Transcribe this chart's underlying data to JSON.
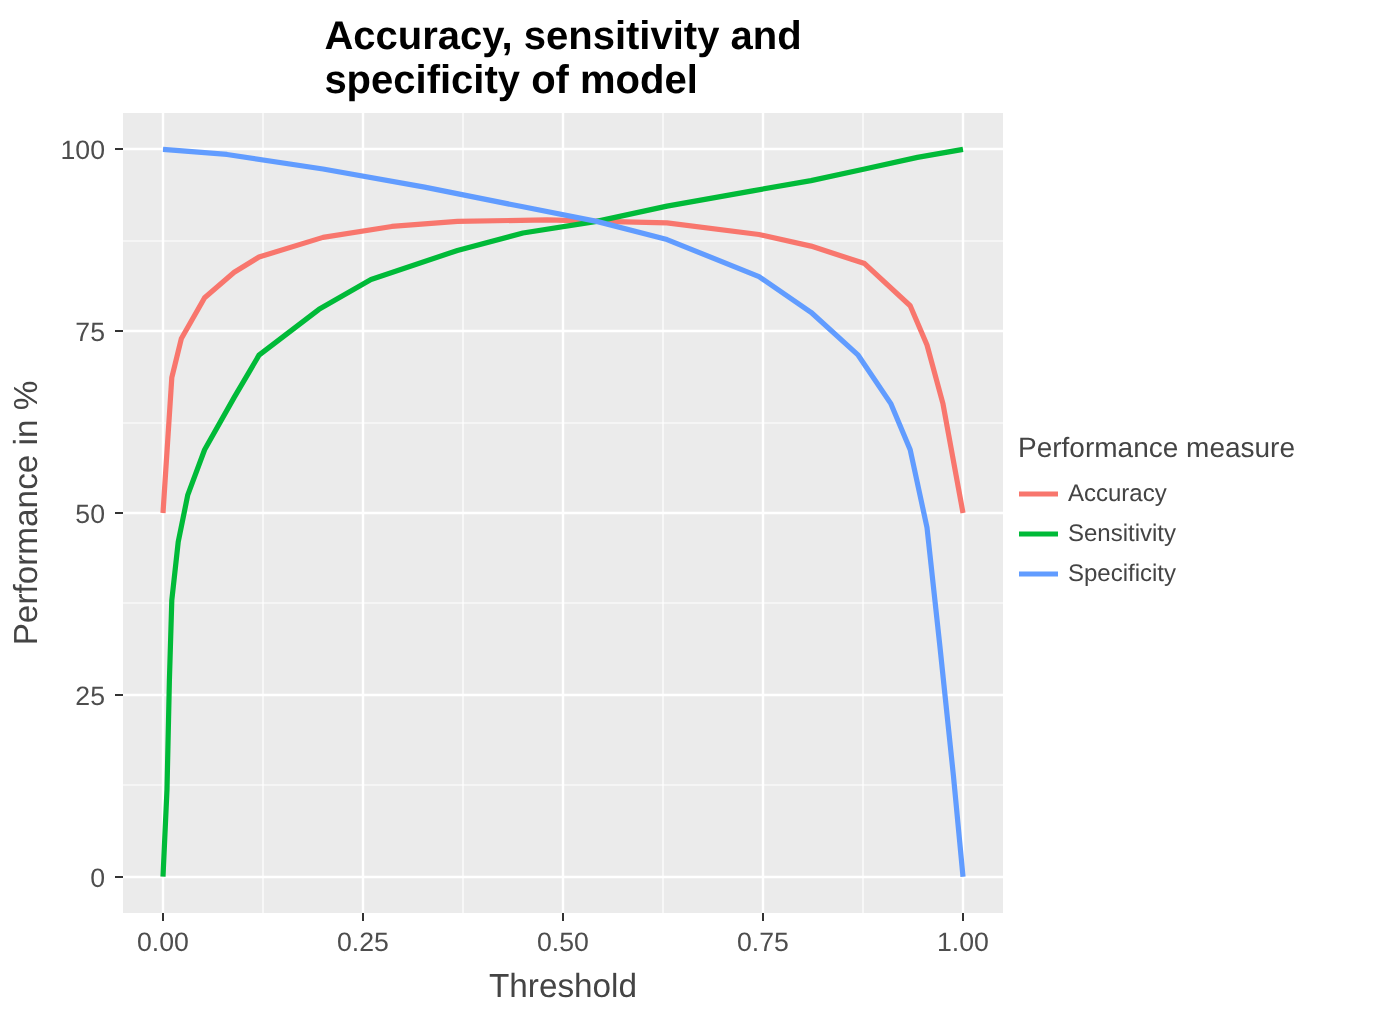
{
  "chart_data": {
    "type": "line",
    "title": "Accuracy, sensitivity and\nspecificity of model",
    "xlabel": "Threshold",
    "ylabel": "Performance in %",
    "legend_title": "Performance measure",
    "xlim": [
      -0.05,
      1.05
    ],
    "ylim": [
      -5,
      105
    ],
    "xticks": [
      {
        "value": 0,
        "label": "0.00"
      },
      {
        "value": 0.25,
        "label": "0.25"
      },
      {
        "value": 0.5,
        "label": "0.50"
      },
      {
        "value": 0.75,
        "label": "0.75"
      },
      {
        "value": 1,
        "label": "1.00"
      }
    ],
    "yticks": [
      0,
      25,
      50,
      75,
      100
    ],
    "grid": true,
    "legend": "right",
    "line_style": "solid",
    "marker": "none",
    "series": [
      {
        "name": "Accuracy",
        "color": "#f8766d",
        "x": [
          0,
          0.011,
          0.023,
          0.052,
          0.089,
          0.12,
          0.2,
          0.286,
          0.368,
          0.48,
          0.55,
          0.63,
          0.745,
          0.81,
          0.877,
          0.934,
          0.955,
          0.975,
          1
        ],
        "values": [
          50,
          68.6,
          74,
          79.6,
          83.1,
          85.2,
          87.9,
          89.4,
          90.1,
          90.3,
          90.1,
          89.9,
          88.3,
          86.7,
          84.3,
          78.5,
          73.1,
          65,
          50
        ]
      },
      {
        "name": "Sensitivity",
        "color": "#00ba38",
        "x": [
          0,
          0.005,
          0.008,
          0.011,
          0.019,
          0.031,
          0.052,
          0.089,
          0.12,
          0.195,
          0.26,
          0.368,
          0.45,
          0.542,
          0.63,
          0.737,
          0.81,
          0.877,
          0.943,
          1
        ],
        "values": [
          0,
          12,
          27,
          38,
          46,
          52.5,
          58.7,
          65.9,
          71.7,
          78,
          82.1,
          86.1,
          88.5,
          90.1,
          92.2,
          94.3,
          95.7,
          97.3,
          98.9,
          100
        ]
      },
      {
        "name": "Specificity",
        "color": "#619cff",
        "x": [
          0,
          0.08,
          0.2,
          0.327,
          0.45,
          0.542,
          0.63,
          0.745,
          0.81,
          0.869,
          0.91,
          0.934,
          0.955,
          0.971,
          0.988,
          1
        ],
        "values": [
          100,
          99.3,
          97.3,
          94.8,
          92.1,
          90.1,
          87.6,
          82.5,
          77.6,
          71.7,
          65,
          58.7,
          48,
          31.8,
          13.9,
          0
        ]
      }
    ]
  }
}
